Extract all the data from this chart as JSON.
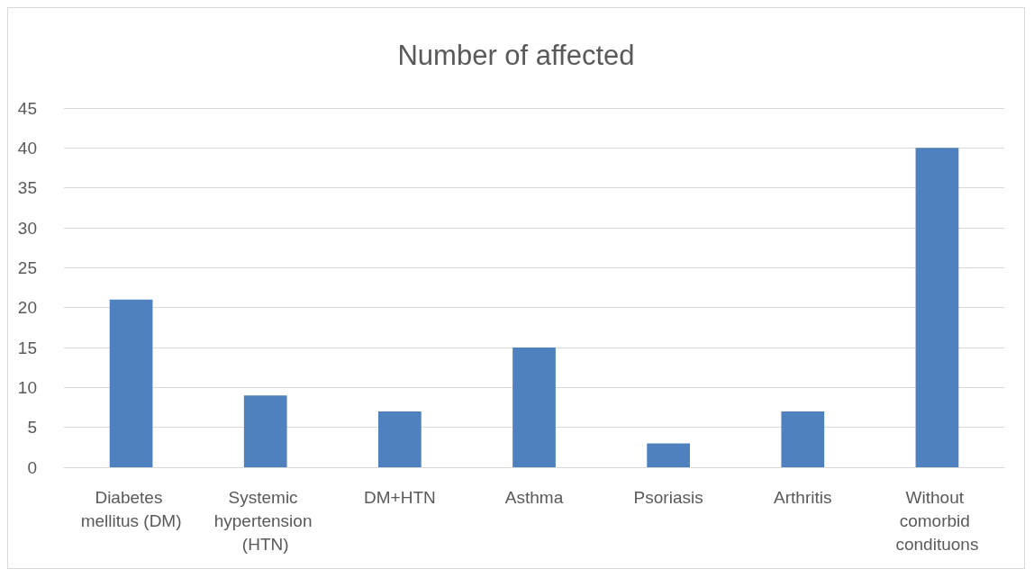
{
  "chart_data": {
    "type": "bar",
    "title": "Number of affected",
    "categories": [
      "Diabetes mellitus (DM)",
      "Systemic hypertension (HTN)",
      "DM+HTN",
      "Asthma",
      "Psoriasis",
      "Arthritis",
      "Without comorbid condituons"
    ],
    "values": [
      21,
      9,
      7,
      15,
      3,
      7,
      40
    ],
    "color": "#4e81bd",
    "ylim": [
      0,
      45
    ],
    "yticks": [
      0,
      5,
      10,
      15,
      20,
      25,
      30,
      35,
      40,
      45
    ],
    "grid": "y"
  }
}
